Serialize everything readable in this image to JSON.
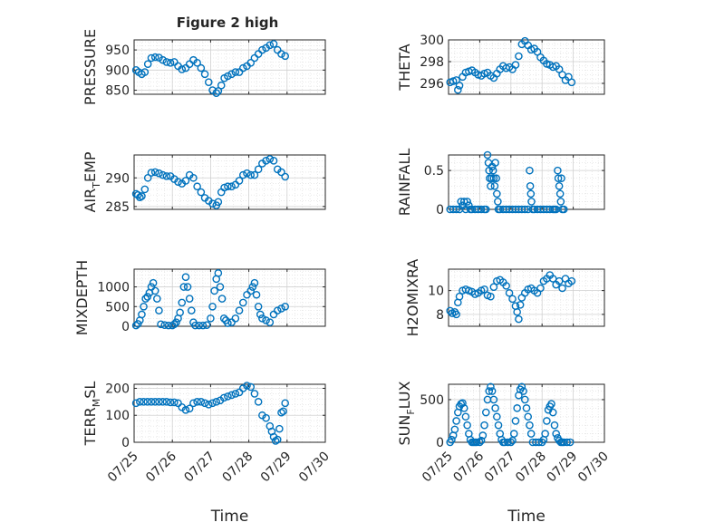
{
  "figure": {
    "title": "Figure 2 high",
    "marker_color": "#0072BD"
  },
  "chart_data": [
    {
      "type": "scatter",
      "ylabel": "PRESSURE",
      "ylim": [
        840,
        975
      ],
      "yticks": [
        850,
        900,
        950
      ],
      "ytick_labels": [
        "850",
        "900",
        "950"
      ],
      "xlim": [
        0,
        5
      ],
      "show_xticklabels": false,
      "xlabel": "",
      "grid": true,
      "minor_grid": true,
      "series": [
        {
          "x": [
            0.05,
            0.12,
            0.2,
            0.28,
            0.36,
            0.45,
            0.55,
            0.65,
            0.75,
            0.85,
            0.95,
            1.05,
            1.15,
            1.25,
            1.35,
            1.45,
            1.55,
            1.65,
            1.75,
            1.85,
            1.95,
            2.05,
            2.15,
            2.2,
            2.28,
            2.36,
            2.45,
            2.55,
            2.65,
            2.75,
            2.85,
            2.95,
            3.05,
            3.15,
            3.25,
            3.35,
            3.45,
            3.55,
            3.65,
            3.75,
            3.85,
            3.95
          ],
          "y": [
            900,
            895,
            890,
            895,
            915,
            930,
            932,
            931,
            925,
            920,
            918,
            920,
            910,
            902,
            905,
            915,
            925,
            918,
            905,
            890,
            870,
            850,
            843,
            848,
            862,
            880,
            885,
            890,
            895,
            895,
            905,
            910,
            918,
            930,
            940,
            950,
            955,
            962,
            965,
            950,
            940,
            935
          ]
        }
      ]
    },
    {
      "type": "scatter",
      "ylabel": "THETA",
      "ylim": [
        295,
        300
      ],
      "yticks": [
        296,
        298,
        300
      ],
      "ytick_labels": [
        "296",
        "298",
        "300"
      ],
      "xlim": [
        0,
        5
      ],
      "show_xticklabels": false,
      "xlabel": "",
      "grid": true,
      "minor_grid": true,
      "series": [
        {
          "x": [
            0.05,
            0.15,
            0.25,
            0.3,
            0.35,
            0.45,
            0.55,
            0.65,
            0.75,
            0.85,
            0.95,
            1.05,
            1.15,
            1.25,
            1.35,
            1.45,
            1.55,
            1.65,
            1.75,
            1.85,
            1.95,
            2.05,
            2.15,
            2.25,
            2.35,
            2.45,
            2.55,
            2.65,
            2.75,
            2.85,
            2.95,
            3.05,
            3.15,
            3.25,
            3.35,
            3.45,
            3.55,
            3.65,
            3.75,
            3.85,
            3.95
          ],
          "y": [
            296.1,
            296.2,
            296.3,
            295.4,
            295.8,
            296.6,
            297,
            297.1,
            297.2,
            297,
            296.8,
            296.7,
            296.9,
            297,
            296.7,
            296.5,
            296.9,
            297.3,
            297.6,
            297.4,
            297.5,
            297.3,
            297.7,
            298.5,
            299.6,
            299.9,
            299.5,
            299.1,
            299.2,
            298.9,
            298.4,
            298.1,
            297.8,
            297.7,
            297.5,
            297.6,
            297.3,
            296.8,
            296.3,
            296.6,
            296.1
          ]
        }
      ]
    },
    {
      "type": "scatter",
      "ylabel": "AIR_TEMP",
      "ylabel_parts": [
        "AIR",
        "T",
        "EMP"
      ],
      "ylim": [
        284.5,
        294
      ],
      "yticks": [
        285,
        290
      ],
      "ytick_labels": [
        "285",
        "290"
      ],
      "xlim": [
        0,
        5
      ],
      "show_xticklabels": false,
      "xlabel": "",
      "grid": true,
      "minor_grid": true,
      "series": [
        {
          "x": [
            0.05,
            0.1,
            0.15,
            0.2,
            0.28,
            0.36,
            0.45,
            0.55,
            0.65,
            0.75,
            0.85,
            0.95,
            1.05,
            1.15,
            1.25,
            1.35,
            1.45,
            1.55,
            1.65,
            1.75,
            1.85,
            1.95,
            2.05,
            2.15,
            2.2,
            2.28,
            2.36,
            2.45,
            2.55,
            2.65,
            2.75,
            2.85,
            2.95,
            3.05,
            3.15,
            3.25,
            3.35,
            3.45,
            3.55,
            3.65,
            3.75,
            3.85,
            3.95
          ],
          "y": [
            287.2,
            287,
            286.6,
            286.8,
            288,
            290,
            290.9,
            291,
            290.8,
            290.5,
            290.3,
            290.3,
            289.8,
            289.3,
            289,
            289.5,
            290.5,
            290,
            288.5,
            287.5,
            286.5,
            286,
            285.5,
            285.2,
            285.8,
            287.5,
            288.3,
            288.5,
            288.5,
            288.8,
            289.5,
            290.5,
            290.8,
            290.5,
            290.5,
            291.5,
            292.5,
            293,
            293.3,
            293,
            291.5,
            291,
            290.2
          ]
        }
      ]
    },
    {
      "type": "scatter",
      "ylabel": "RAINFALL",
      "ylim": [
        0,
        0.7
      ],
      "yticks": [
        0,
        0.5
      ],
      "ytick_labels": [
        "0",
        "0.5"
      ],
      "xlim": [
        0,
        5
      ],
      "show_xticklabels": false,
      "xlabel": "",
      "grid": true,
      "minor_grid": true,
      "series": [
        {
          "x": [
            0.05,
            0.15,
            0.25,
            0.35,
            0.4,
            0.45,
            0.5,
            0.55,
            0.6,
            0.65,
            0.7,
            0.75,
            0.85,
            0.95,
            1.05,
            1.15,
            1.2,
            1.25,
            1.28,
            1.3,
            1.32,
            1.35,
            1.38,
            1.4,
            1.43,
            1.45,
            1.48,
            1.5,
            1.53,
            1.55,
            1.58,
            1.6,
            1.65,
            1.75,
            1.85,
            1.95,
            2.05,
            2.15,
            2.25,
            2.35,
            2.45,
            2.55,
            2.6,
            2.62,
            2.64,
            2.66,
            2.7,
            2.75,
            2.85,
            2.95,
            3.05,
            3.15,
            3.25,
            3.35,
            3.4,
            3.45,
            3.5,
            3.52,
            3.55,
            3.58,
            3.6,
            3.62,
            3.65,
            3.7
          ],
          "y": [
            0,
            0,
            0,
            0,
            0.1,
            0.05,
            0.1,
            0,
            0.1,
            0.05,
            0,
            0,
            0,
            0,
            0,
            0,
            0,
            0.7,
            0.6,
            0.5,
            0.4,
            0.3,
            0.4,
            0.55,
            0.5,
            0.4,
            0.3,
            0.6,
            0.4,
            0.2,
            0.1,
            0,
            0,
            0,
            0,
            0,
            0,
            0,
            0,
            0,
            0,
            0,
            0.5,
            0.3,
            0.2,
            0.1,
            0,
            0,
            0,
            0,
            0,
            0,
            0,
            0,
            0,
            0,
            0.5,
            0.4,
            0.3,
            0.2,
            0.1,
            0.4,
            0,
            0
          ]
        }
      ]
    },
    {
      "type": "scatter",
      "ylabel": "MIXDEPTH",
      "ylim": [
        0,
        1450
      ],
      "yticks": [
        0,
        500,
        1000
      ],
      "ytick_labels": [
        "0",
        "500",
        "1000"
      ],
      "xlim": [
        0,
        5
      ],
      "show_xticklabels": false,
      "xlabel": "",
      "grid": true,
      "minor_grid": true,
      "series": [
        {
          "x": [
            0.05,
            0.1,
            0.15,
            0.2,
            0.25,
            0.3,
            0.35,
            0.4,
            0.45,
            0.5,
            0.55,
            0.6,
            0.65,
            0.7,
            0.8,
            0.9,
            1,
            1.05,
            1.1,
            1.15,
            1.2,
            1.25,
            1.3,
            1.35,
            1.4,
            1.45,
            1.5,
            1.55,
            1.6,
            1.7,
            1.8,
            1.9,
            2,
            2.05,
            2.1,
            2.15,
            2.2,
            2.25,
            2.3,
            2.35,
            2.4,
            2.45,
            2.55,
            2.65,
            2.75,
            2.85,
            2.95,
            3.05,
            3.1,
            3.15,
            3.2,
            3.25,
            3.3,
            3.35,
            3.45,
            3.55,
            3.65,
            3.75,
            3.85,
            3.95
          ],
          "y": [
            20,
            60,
            150,
            300,
            500,
            700,
            750,
            850,
            1000,
            1100,
            900,
            700,
            400,
            50,
            30,
            20,
            20,
            50,
            100,
            200,
            350,
            600,
            1000,
            1250,
            1000,
            700,
            400,
            100,
            20,
            20,
            20,
            30,
            200,
            500,
            900,
            1200,
            1350,
            1000,
            700,
            200,
            150,
            80,
            100,
            200,
            400,
            600,
            800,
            900,
            1000,
            1100,
            800,
            500,
            300,
            200,
            150,
            100,
            300,
            400,
            450,
            500
          ]
        }
      ]
    },
    {
      "type": "scatter",
      "ylabel": "H2OMIXRA",
      "ylim": [
        7,
        11.8
      ],
      "yticks": [
        8,
        10
      ],
      "ytick_labels": [
        "8",
        "10"
      ],
      "xlim": [
        0,
        5
      ],
      "show_xticklabels": false,
      "xlabel": "",
      "grid": true,
      "minor_grid": true,
      "series": [
        {
          "x": [
            0.05,
            0.12,
            0.2,
            0.25,
            0.3,
            0.35,
            0.45,
            0.55,
            0.65,
            0.75,
            0.85,
            0.95,
            1.05,
            1.15,
            1.25,
            1.35,
            1.45,
            1.55,
            1.65,
            1.75,
            1.85,
            1.95,
            2.05,
            2.15,
            2.2,
            2.25,
            2.3,
            2.35,
            2.45,
            2.55,
            2.65,
            2.75,
            2.85,
            2.95,
            3.05,
            3.15,
            3.25,
            3.35,
            3.45,
            3.55,
            3.65,
            3.75,
            3.85,
            3.95
          ],
          "y": [
            8.3,
            8.1,
            8.2,
            8.0,
            9.0,
            9.5,
            10,
            10.1,
            10,
            9.9,
            9.7,
            9.8,
            10,
            10.1,
            9.6,
            9.5,
            10.3,
            10.8,
            10.9,
            10.7,
            10.4,
            9.8,
            9.3,
            8.7,
            8.2,
            7.6,
            8.8,
            9.4,
            9.8,
            10.1,
            10.2,
            10,
            9.8,
            10.2,
            10.8,
            11,
            11.3,
            11,
            10.5,
            10.8,
            10.2,
            11,
            10.6,
            10.8
          ]
        }
      ]
    },
    {
      "type": "scatter",
      "ylabel": "TERR_MSL",
      "ylabel_parts": [
        "TERR",
        "M",
        "SL"
      ],
      "ylim": [
        0,
        215
      ],
      "yticks": [
        0,
        100,
        200
      ],
      "ytick_labels": [
        "0",
        "100",
        "200"
      ],
      "xlim": [
        0,
        5
      ],
      "xticks": [
        0,
        1,
        2,
        3,
        4,
        5
      ],
      "xtick_labels": [
        "07/25",
        "07/26",
        "07/27",
        "07/28",
        "07/29",
        "07/30"
      ],
      "show_xticklabels": true,
      "xlabel": "Time",
      "grid": true,
      "minor_grid": true,
      "series": [
        {
          "x": [
            0.05,
            0.15,
            0.25,
            0.35,
            0.45,
            0.55,
            0.65,
            0.75,
            0.85,
            0.95,
            1.05,
            1.15,
            1.25,
            1.35,
            1.45,
            1.55,
            1.65,
            1.75,
            1.85,
            1.95,
            2.05,
            2.15,
            2.25,
            2.35,
            2.45,
            2.55,
            2.65,
            2.75,
            2.85,
            2.95,
            3.05,
            3.15,
            3.25,
            3.35,
            3.45,
            3.55,
            3.6,
            3.65,
            3.7,
            3.75,
            3.8,
            3.85,
            3.9,
            3.95
          ],
          "y": [
            145,
            150,
            150,
            150,
            150,
            150,
            150,
            150,
            150,
            148,
            148,
            145,
            130,
            120,
            125,
            145,
            150,
            150,
            145,
            140,
            145,
            150,
            155,
            165,
            170,
            175,
            180,
            185,
            200,
            210,
            205,
            180,
            150,
            100,
            90,
            60,
            40,
            20,
            5,
            10,
            50,
            110,
            115,
            145
          ]
        }
      ]
    },
    {
      "type": "scatter",
      "ylabel": "SUN_FLUX",
      "ylabel_parts": [
        "SUN",
        "F",
        "LUX"
      ],
      "ylim": [
        0,
        680
      ],
      "yticks": [
        0,
        500
      ],
      "ytick_labels": [
        "0",
        "500"
      ],
      "xlim": [
        0,
        5
      ],
      "xticks": [
        0,
        1,
        2,
        3,
        4,
        5
      ],
      "xtick_labels": [
        "07/25",
        "07/26",
        "07/27",
        "07/28",
        "07/29",
        "07/30"
      ],
      "show_xticklabels": true,
      "xlabel": "Time",
      "grid": true,
      "minor_grid": true,
      "series": [
        {
          "x": [
            0.05,
            0.1,
            0.15,
            0.2,
            0.25,
            0.3,
            0.35,
            0.4,
            0.45,
            0.5,
            0.55,
            0.6,
            0.65,
            0.7,
            0.75,
            0.8,
            0.85,
            0.9,
            1,
            1.05,
            1.1,
            1.15,
            1.2,
            1.25,
            1.3,
            1.35,
            1.4,
            1.45,
            1.5,
            1.55,
            1.6,
            1.65,
            1.7,
            1.75,
            1.8,
            1.9,
            2,
            2.05,
            2.1,
            2.15,
            2.2,
            2.25,
            2.3,
            2.35,
            2.4,
            2.45,
            2.5,
            2.55,
            2.6,
            2.65,
            2.7,
            2.8,
            2.9,
            3,
            3.05,
            3.1,
            3.15,
            3.2,
            3.25,
            3.3,
            3.35,
            3.4,
            3.45,
            3.5,
            3.55,
            3.6,
            3.65,
            3.7,
            3.8,
            3.9
          ],
          "y": [
            0,
            30,
            80,
            150,
            250,
            350,
            420,
            450,
            460,
            400,
            300,
            200,
            100,
            30,
            0,
            0,
            0,
            0,
            0,
            20,
            80,
            200,
            350,
            500,
            600,
            650,
            600,
            500,
            400,
            300,
            200,
            100,
            30,
            0,
            0,
            0,
            0,
            20,
            100,
            250,
            400,
            550,
            620,
            650,
            600,
            500,
            400,
            300,
            200,
            100,
            0,
            0,
            0,
            0,
            30,
            100,
            250,
            380,
            420,
            450,
            350,
            200,
            100,
            50,
            20,
            0,
            0,
            0,
            0,
            0
          ]
        }
      ]
    }
  ]
}
